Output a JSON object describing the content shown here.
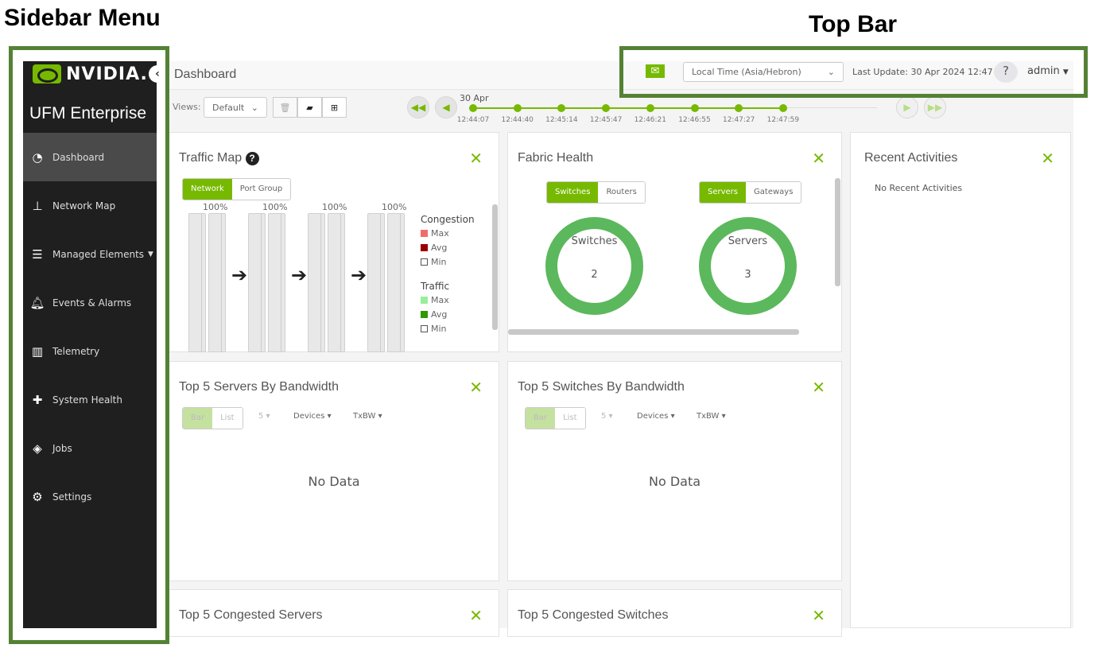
{
  "annotations": {
    "sidebar": "Sidebar Menu",
    "topbar": "Top Bar"
  },
  "colors": {
    "accent": "#76b900",
    "sidebar_bg": "#1f1f1f",
    "annotation_box": "#548235"
  },
  "sidebar": {
    "brand": "NVIDIA.",
    "product": "UFM Enterprise",
    "collapse_icon": "chevron-left-icon",
    "items": [
      {
        "label": "Dashboard",
        "icon": "gauge-icon",
        "active": true
      },
      {
        "label": "Network Map",
        "icon": "sitemap-icon"
      },
      {
        "label": "Managed Elements",
        "icon": "list-check-icon",
        "expandable": true
      },
      {
        "label": "Events & Alarms",
        "icon": "bell-icon"
      },
      {
        "label": "Telemetry",
        "icon": "bar-chart-icon"
      },
      {
        "label": "System Health",
        "icon": "medkit-icon"
      },
      {
        "label": "Jobs",
        "icon": "cube-icon"
      },
      {
        "label": "Settings",
        "icon": "gear-icon"
      }
    ]
  },
  "header": {
    "title": "Dashboard",
    "timezone": "Local Time (Asia/Hebron)",
    "last_update": "Last Update: 30 Apr 2024 12:47",
    "help": "?",
    "user": "admin"
  },
  "toolbar": {
    "views_label": "Views:",
    "view_value": "Default"
  },
  "timeline": {
    "date": "30 Apr",
    "ticks": [
      "12:44:07",
      "12:44:40",
      "12:45:14",
      "12:45:47",
      "12:46:21",
      "12:46:55",
      "12:47:27",
      "12:47:59"
    ]
  },
  "traffic_map": {
    "title": "Traffic Map",
    "tabs": [
      "Network",
      "Port Group"
    ],
    "percents": [
      "100%",
      "100%",
      "100%",
      "100%"
    ],
    "congestion": {
      "title": "Congestion",
      "items": [
        {
          "label": "Max",
          "color": "#f26b6b"
        },
        {
          "label": "Avg",
          "color": "#990000"
        },
        {
          "label": "Min",
          "color": "#ffffff"
        }
      ]
    },
    "traffic": {
      "title": "Traffic",
      "items": [
        {
          "label": "Max",
          "color": "#99ee99"
        },
        {
          "label": "Avg",
          "color": "#2e9900"
        },
        {
          "label": "Min",
          "color": "#ffffff"
        }
      ]
    }
  },
  "fabric_health": {
    "title": "Fabric Health",
    "left_tabs": [
      "Switches",
      "Routers"
    ],
    "right_tabs": [
      "Servers",
      "Gateways"
    ],
    "left_label": "Switches",
    "left_value": "2",
    "right_label": "Servers",
    "right_value": "3"
  },
  "recent": {
    "title": "Recent Activities",
    "empty": "No Recent Activities"
  },
  "top_servers": {
    "title": "Top 5 Servers By Bandwidth",
    "tabs": [
      "Bar",
      "List"
    ],
    "count": "5",
    "devices": "Devices",
    "metric": "TxBW",
    "empty": "No Data"
  },
  "top_switches": {
    "title": "Top 5 Switches By Bandwidth",
    "tabs": [
      "Bar",
      "List"
    ],
    "count": "5",
    "devices": "Devices",
    "metric": "TxBW",
    "empty": "No Data"
  },
  "congested_servers": {
    "title": "Top 5 Congested Servers"
  },
  "congested_switches": {
    "title": "Top 5 Congested Switches"
  }
}
